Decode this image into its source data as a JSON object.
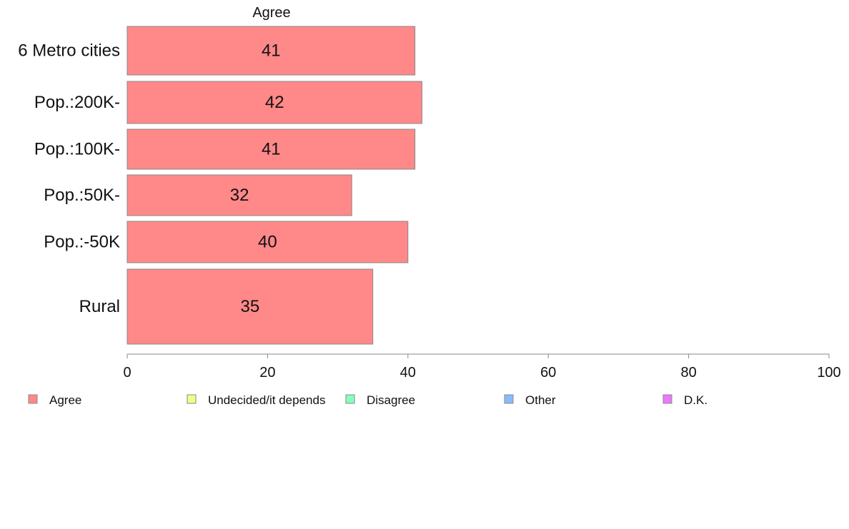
{
  "chart_data": {
    "type": "bar",
    "orientation": "horizontal",
    "title": "Agree",
    "categories": [
      "6 Metro cities",
      "Pop.:200K-",
      "Pop.:100K-",
      "Pop.:50K-",
      "Pop.:-50K",
      "Rural"
    ],
    "series": [
      {
        "name": "Agree",
        "values": [
          41,
          42,
          41,
          32,
          40,
          35
        ],
        "value_labels": [
          "41",
          "42",
          "41",
          "32",
          "40",
          "35"
        ],
        "color": "#ff8888"
      }
    ],
    "xlim": [
      0,
      100
    ],
    "x_ticks": [
      0,
      20,
      40,
      60,
      80,
      100
    ],
    "x_tick_labels": [
      "0",
      "20",
      "40",
      "60",
      "80",
      "100"
    ],
    "grid": false,
    "legend_placement": "bottom",
    "legend": [
      {
        "label": "Agree",
        "color": "#ff8888"
      },
      {
        "label": "Undecided/it depends",
        "color": "#f0ff88"
      },
      {
        "label": "Disagree",
        "color": "#88ffbb"
      },
      {
        "label": "Other",
        "color": "#88bbff"
      },
      {
        "label": "D.K.",
        "color": "#ee77ff"
      }
    ]
  },
  "colors": {
    "bar_stroke": "#888888",
    "axis": "#888888",
    "text": "#111111"
  }
}
